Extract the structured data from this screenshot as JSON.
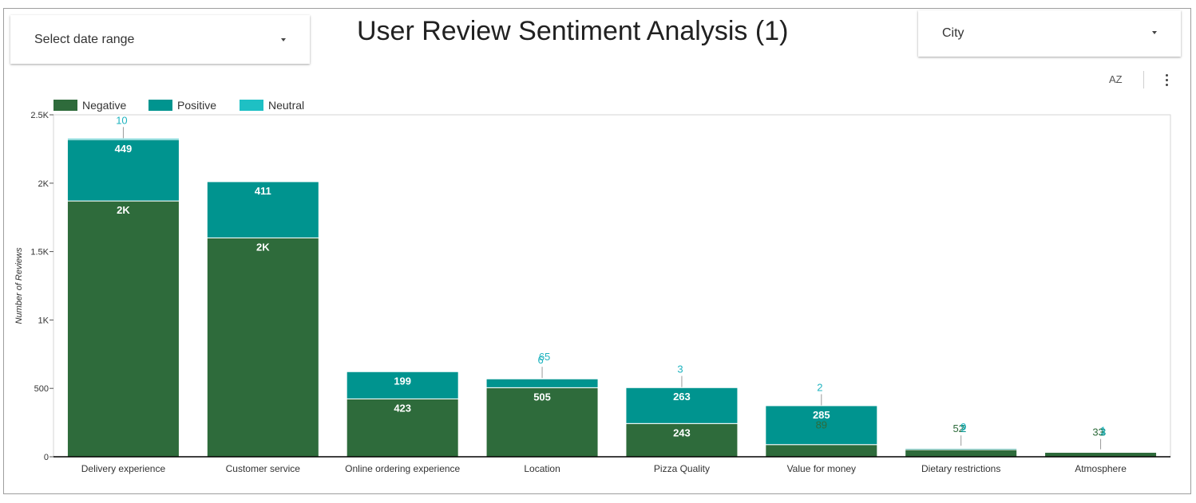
{
  "header": {
    "title": "User Review Sentiment Analysis (1)",
    "date_control": {
      "label": "Select date range"
    },
    "city_control": {
      "label": "City"
    },
    "sort_icon_label": "AZ"
  },
  "colors": {
    "negative": "#2e6b3b",
    "positive": "#00948f",
    "neutral": "#1ec0c4",
    "axis": "#000000",
    "neutral_label": "#1eb3bf",
    "bar_label": "#ffffff"
  },
  "chart_data": {
    "type": "bar",
    "stacked": true,
    "title": "User Review Sentiment Analysis (1)",
    "ylabel": "Number of Reviews",
    "xlabel": "",
    "ylim": [
      0,
      2500
    ],
    "y_ticks": [
      0,
      500,
      1000,
      1500,
      2000,
      2500
    ],
    "y_tick_labels": [
      "0",
      "500",
      "1K",
      "1.5K",
      "2K",
      "2.5K"
    ],
    "legend_position": "top-left",
    "grid": false,
    "categories": [
      "Delivery experience",
      "Customer service",
      "Online ordering experience",
      "Location",
      "Pizza Quality",
      "Value for money",
      "Dietary restrictions",
      "Atmosphere"
    ],
    "series": [
      {
        "name": "Negative",
        "values": [
          1870,
          1600,
          423,
          505,
          243,
          89,
          52,
          33
        ],
        "labels": [
          "2K",
          "2K",
          "423",
          "505",
          "243",
          "89",
          "52",
          "33"
        ]
      },
      {
        "name": "Positive",
        "values": [
          449,
          411,
          199,
          65,
          263,
          285,
          9,
          1
        ],
        "labels": [
          "449",
          "411",
          "199",
          "65",
          "263",
          "285",
          "9",
          "1"
        ]
      },
      {
        "name": "Neutral",
        "values": [
          10,
          0,
          0,
          6,
          3,
          2,
          2,
          3
        ],
        "labels": [
          "10",
          "",
          "",
          "6",
          "3",
          "2",
          "2",
          "3"
        ]
      }
    ]
  }
}
